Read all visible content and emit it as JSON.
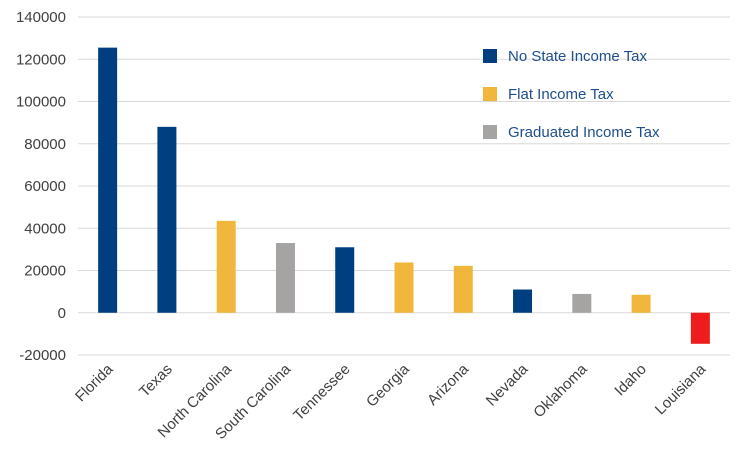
{
  "chart_data": {
    "type": "bar",
    "title": "",
    "xlabel": "",
    "ylabel": "",
    "ylim": [
      -20000,
      140000
    ],
    "yticks": [
      -20000,
      0,
      20000,
      40000,
      60000,
      80000,
      100000,
      120000,
      140000
    ],
    "grid": true,
    "legend_position": "top-right",
    "categories": [
      "Florida",
      "Texas",
      "North Carolina",
      "South Carolina",
      "Tennessee",
      "Georgia",
      "Arizona",
      "Nevada",
      "Oklahoma",
      "Idaho",
      "Louisiana"
    ],
    "values": [
      125500,
      88000,
      43500,
      33000,
      31000,
      23800,
      22200,
      11000,
      8900,
      8500,
      -14700
    ],
    "bar_colors": [
      "#003f7f",
      "#003f7f",
      "#f0b73c",
      "#a6a3a3",
      "#003f7f",
      "#f0b73c",
      "#f0b73c",
      "#003f7f",
      "#a6a3a3",
      "#f0b73c",
      "#ee1c1c"
    ],
    "legend": [
      {
        "label": "No State Income Tax",
        "color": "#003f7f"
      },
      {
        "label": "Flat Income Tax",
        "color": "#f0b73c"
      },
      {
        "label": "Graduated Income Tax",
        "color": "#a6a3a3"
      }
    ]
  }
}
